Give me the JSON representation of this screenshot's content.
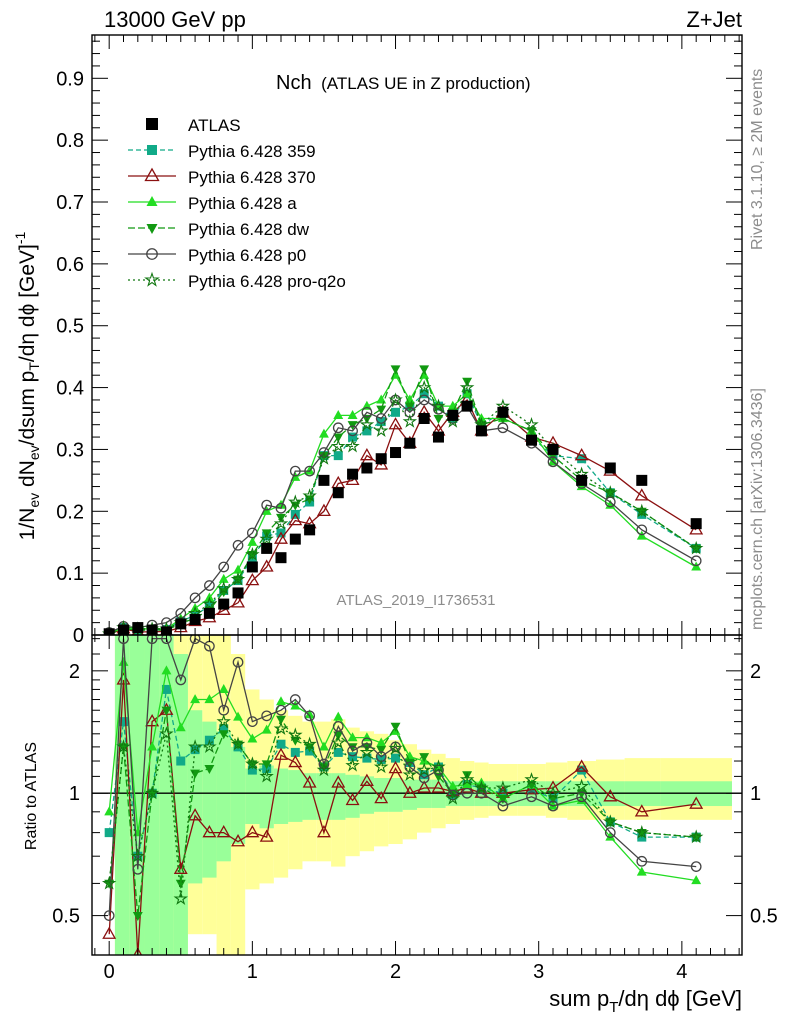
{
  "header": {
    "left": "13000 GeV pp",
    "right": "Z+Jet"
  },
  "chart_data": {
    "type": "line",
    "title_main": "Nch",
    "title_sub": "(ATLAS UE in Z production)",
    "watermark": "ATLAS_2019_I1736531",
    "side_top": "Rivet 3.1.10, ≥ 2M events",
    "side_bottom": "mcplots.cern.ch [arXiv:1306.3436]",
    "ylabel_main": "1/N",
    "ylabel_main_parts": [
      "1/N",
      "ev",
      " dN",
      "ev",
      "/dsum p",
      "T",
      "/dη dϕ  [GeV]",
      "-1"
    ],
    "ylabel_ratio": "Ratio to ATLAS",
    "xlabel_parts": [
      "sum p",
      "T",
      "/dη dϕ [GeV]"
    ],
    "xlim": [
      -0.12,
      4.42
    ],
    "ylim_main": [
      0,
      0.97
    ],
    "ylim_ratio": [
      0.4,
      2.45
    ],
    "ratio_log": true,
    "x_ticks": [
      0,
      1,
      2,
      3,
      4
    ],
    "y_ticks_main": [
      0,
      0.1,
      0.2,
      0.3,
      0.4,
      0.5,
      0.6,
      0.7,
      0.8,
      0.9
    ],
    "y_tick_labels_main": [
      "0",
      "0.1",
      "0.2",
      "0.3",
      "0.4",
      "0.5",
      "0.6",
      "0.7",
      "0.8",
      "0.9"
    ],
    "y_ticks_ratio": [
      0.5,
      1,
      2
    ],
    "y_tick_labels_ratio": [
      "0.5",
      "1",
      "2"
    ],
    "legend_position": "top-left",
    "x": [
      0,
      0.1,
      0.2,
      0.3,
      0.4,
      0.5,
      0.6,
      0.7,
      0.8,
      0.9,
      1.0,
      1.1,
      1.2,
      1.3,
      1.4,
      1.5,
      1.6,
      1.7,
      1.8,
      1.9,
      2.0,
      2.1,
      2.2,
      2.3,
      2.4,
      2.5,
      2.6,
      2.75,
      2.95,
      3.1,
      3.3,
      3.5,
      3.72,
      4.1
    ],
    "ratio_band": {
      "x_edges": [
        0.04,
        0.14,
        0.25,
        0.35,
        0.45,
        0.55,
        0.65,
        0.75,
        0.85,
        0.95,
        1.05,
        1.15,
        1.25,
        1.35,
        1.45,
        1.55,
        1.65,
        1.75,
        1.85,
        1.95,
        2.05,
        2.15,
        2.25,
        2.35,
        2.45,
        2.55,
        2.65,
        2.85,
        3.05,
        3.2,
        3.4,
        3.6,
        3.85,
        4.35
      ],
      "stat_lo": [
        0.3,
        0.3,
        0.3,
        0.3,
        0.4,
        0.6,
        0.62,
        0.68,
        0.75,
        0.84,
        0.82,
        0.84,
        0.85,
        0.86,
        0.86,
        0.86,
        0.87,
        0.89,
        0.9,
        0.9,
        0.91,
        0.92,
        0.92,
        0.93,
        0.93,
        0.93,
        0.93,
        0.93,
        0.93,
        0.93,
        0.93,
        0.93,
        0.93
      ],
      "stat_hi": [
        2.45,
        2.45,
        2.45,
        2.45,
        2.2,
        1.6,
        1.5,
        1.42,
        1.3,
        1.15,
        1.17,
        1.15,
        1.14,
        1.12,
        1.12,
        1.12,
        1.11,
        1.1,
        1.09,
        1.09,
        1.08,
        1.08,
        1.08,
        1.07,
        1.07,
        1.07,
        1.07,
        1.07,
        1.07,
        1.07,
        1.07,
        1.07,
        1.07
      ],
      "tot_lo": [
        0.3,
        0.3,
        0.3,
        0.3,
        0.4,
        0.45,
        0.45,
        0.38,
        0.4,
        0.58,
        0.6,
        0.62,
        0.65,
        0.68,
        0.68,
        0.66,
        0.7,
        0.72,
        0.74,
        0.75,
        0.77,
        0.8,
        0.82,
        0.84,
        0.86,
        0.87,
        0.88,
        0.88,
        0.87,
        0.86,
        0.86,
        0.86,
        0.86
      ],
      "tot_hi": [
        2.45,
        2.45,
        2.45,
        2.45,
        2.45,
        2.45,
        2.45,
        2.45,
        2.2,
        1.8,
        1.7,
        1.6,
        1.55,
        1.5,
        1.5,
        1.52,
        1.45,
        1.42,
        1.4,
        1.35,
        1.32,
        1.28,
        1.25,
        1.22,
        1.2,
        1.19,
        1.18,
        1.18,
        1.19,
        1.2,
        1.21,
        1.22,
        1.22
      ]
    },
    "data": {
      "name": "ATLAS",
      "color": "#000000",
      "values": [
        0.002,
        0.008,
        0.012,
        0.008,
        0.005,
        0.018,
        0.025,
        0.035,
        0.05,
        0.068,
        0.11,
        0.14,
        0.125,
        0.155,
        0.17,
        0.25,
        0.23,
        0.26,
        0.27,
        0.285,
        0.295,
        0.31,
        0.35,
        0.32,
        0.355,
        0.37,
        0.33,
        0.36,
        0.315,
        0.3,
        0.25,
        0.27,
        0.25,
        0.18
      ]
    },
    "series": [
      {
        "name": "Pythia 6.428 359",
        "color": "#11aa88",
        "dash": "5,3",
        "marker": "square",
        "values": [
          0.002,
          0.012,
          0.008,
          0.008,
          0.009,
          0.022,
          0.032,
          0.047,
          0.072,
          0.088,
          0.125,
          0.16,
          0.165,
          0.195,
          0.215,
          0.29,
          0.29,
          0.32,
          0.33,
          0.345,
          0.36,
          0.37,
          0.39,
          0.37,
          0.35,
          0.39,
          0.34,
          0.36,
          0.32,
          0.29,
          0.285,
          0.23,
          0.195,
          0.14
        ],
        "ratio": [
          0.8,
          1.5,
          0.7,
          1.0,
          1.8,
          1.2,
          1.28,
          1.35,
          1.44,
          1.3,
          1.14,
          1.15,
          1.32,
          1.26,
          1.27,
          1.16,
          1.26,
          1.23,
          1.22,
          1.21,
          1.22,
          1.19,
          1.11,
          1.16,
          0.99,
          1.05,
          1.03,
          1.0,
          1.02,
          0.97,
          1.14,
          0.85,
          0.78,
          0.78
        ]
      },
      {
        "name": "Pythia 6.428 370",
        "color": "#8b1010",
        "dash": "",
        "marker": "triangle-open",
        "values": [
          0.001,
          0.01,
          0.005,
          0.005,
          0.006,
          0.012,
          0.022,
          0.028,
          0.04,
          0.052,
          0.088,
          0.11,
          0.155,
          0.185,
          0.18,
          0.2,
          0.245,
          0.25,
          0.29,
          0.275,
          0.34,
          0.31,
          0.36,
          0.33,
          0.36,
          0.38,
          0.33,
          0.36,
          0.32,
          0.31,
          0.29,
          0.265,
          0.225,
          0.17
        ],
        "ratio": [
          0.45,
          1.9,
          0.3,
          1.5,
          1.6,
          0.65,
          0.88,
          0.8,
          0.8,
          0.76,
          0.8,
          0.78,
          1.24,
          1.19,
          1.06,
          0.8,
          1.06,
          0.96,
          1.07,
          0.97,
          1.15,
          1.0,
          1.03,
          1.03,
          1.01,
          1.03,
          1.0,
          1.0,
          1.02,
          1.03,
          1.16,
          0.98,
          0.9,
          0.94
        ]
      },
      {
        "name": "Pythia 6.428 a",
        "color": "#22dd22",
        "dash": "",
        "marker": "triangle",
        "values": [
          0.002,
          0.012,
          0.01,
          0.01,
          0.01,
          0.026,
          0.043,
          0.06,
          0.09,
          0.105,
          0.15,
          0.2,
          0.21,
          0.255,
          0.265,
          0.325,
          0.355,
          0.355,
          0.37,
          0.38,
          0.42,
          0.38,
          0.42,
          0.37,
          0.37,
          0.39,
          0.35,
          0.35,
          0.33,
          0.28,
          0.24,
          0.21,
          0.16,
          0.11
        ],
        "ratio": [
          0.9,
          2.1,
          0.8,
          1.3,
          2.0,
          1.45,
          1.7,
          1.7,
          1.8,
          1.54,
          1.36,
          1.43,
          1.68,
          1.64,
          1.56,
          1.3,
          1.54,
          1.37,
          1.37,
          1.33,
          1.42,
          1.23,
          1.2,
          1.16,
          1.04,
          1.05,
          1.06,
          0.97,
          1.05,
          0.93,
          0.96,
          0.78,
          0.64,
          0.61
        ]
      },
      {
        "name": "Pythia 6.428 dw",
        "color": "#119911",
        "dash": "7,3",
        "marker": "triangle-down",
        "values": [
          0.002,
          0.01,
          0.008,
          0.008,
          0.008,
          0.018,
          0.028,
          0.04,
          0.07,
          0.09,
          0.13,
          0.165,
          0.19,
          0.21,
          0.22,
          0.29,
          0.32,
          0.34,
          0.35,
          0.365,
          0.43,
          0.37,
          0.43,
          0.35,
          0.36,
          0.41,
          0.34,
          0.35,
          0.33,
          0.29,
          0.25,
          0.23,
          0.2,
          0.14
        ],
        "ratio": [
          0.6,
          1.3,
          0.5,
          1.0,
          1.6,
          0.6,
          1.12,
          1.15,
          1.4,
          1.32,
          1.18,
          1.18,
          1.52,
          1.35,
          1.3,
          1.16,
          1.39,
          1.3,
          1.3,
          1.28,
          1.46,
          1.19,
          1.23,
          1.1,
          1.0,
          1.11,
          1.03,
          0.97,
          1.05,
          0.97,
          1.0,
          0.85,
          0.8,
          0.78
        ]
      },
      {
        "name": "Pythia 6.428 p0",
        "color": "#444444",
        "dash": "",
        "marker": "circle-open",
        "values": [
          0.004,
          0.014,
          0.012,
          0.016,
          0.02,
          0.035,
          0.06,
          0.08,
          0.11,
          0.145,
          0.165,
          0.21,
          0.205,
          0.265,
          0.265,
          0.295,
          0.335,
          0.33,
          0.36,
          0.35,
          0.38,
          0.36,
          0.38,
          0.365,
          0.35,
          0.37,
          0.33,
          0.335,
          0.31,
          0.28,
          0.245,
          0.215,
          0.17,
          0.12
        ],
        "ratio": [
          0.5,
          2.4,
          0.65,
          2.4,
          2.4,
          1.9,
          2.4,
          2.3,
          1.6,
          2.1,
          1.5,
          1.55,
          1.6,
          1.7,
          1.55,
          1.18,
          1.46,
          1.27,
          1.33,
          1.23,
          1.3,
          1.16,
          1.09,
          1.14,
          0.99,
          1.0,
          1.0,
          0.93,
          0.98,
          0.93,
          0.98,
          0.8,
          0.68,
          0.66
        ]
      },
      {
        "name": "Pythia 6.428 pro-q2o",
        "color": "#117711",
        "dash": "2,3",
        "marker": "star",
        "values": [
          0.002,
          0.012,
          0.01,
          0.01,
          0.01,
          0.02,
          0.035,
          0.05,
          0.075,
          0.09,
          0.13,
          0.155,
          0.18,
          0.215,
          0.225,
          0.285,
          0.305,
          0.305,
          0.34,
          0.33,
          0.38,
          0.345,
          0.4,
          0.37,
          0.345,
          0.4,
          0.34,
          0.37,
          0.34,
          0.3,
          0.26,
          0.23,
          0.2,
          0.14
        ],
        "ratio": [
          0.6,
          1.3,
          0.7,
          1.0,
          1.4,
          0.55,
          1.3,
          1.3,
          1.5,
          1.32,
          1.18,
          1.1,
          1.44,
          1.39,
          1.32,
          1.14,
          1.33,
          1.17,
          1.26,
          1.16,
          1.29,
          1.11,
          1.14,
          1.16,
          0.97,
          1.08,
          1.03,
          1.03,
          1.08,
          1.0,
          1.04,
          0.85,
          0.8,
          0.78
        ]
      }
    ]
  }
}
